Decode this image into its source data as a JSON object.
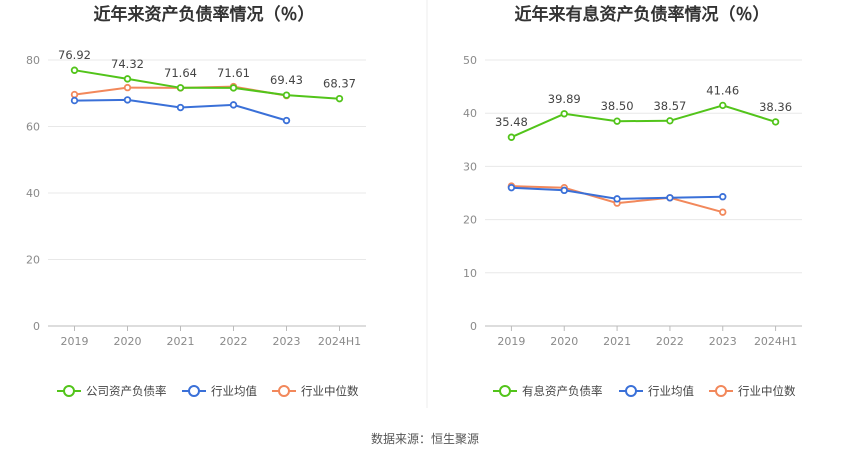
{
  "source": "数据来源：恒生聚源",
  "colors": {
    "company": "#52c41a",
    "avg": "#3a70d8",
    "median": "#f2885b",
    "grid": "#e8e8e8",
    "axis": "#bbbbbb"
  },
  "chart_data": [
    {
      "type": "line",
      "title": "近年来资产负债率情况（％）",
      "categories": [
        "2019",
        "2020",
        "2021",
        "2022",
        "2023",
        "2024H1"
      ],
      "ylim": [
        0,
        80
      ],
      "yticks": [
        0,
        20,
        40,
        60,
        80
      ],
      "grid": true,
      "legend_position": "bottom",
      "series": [
        {
          "name": "公司资产负债率",
          "values": [
            76.92,
            74.32,
            71.64,
            71.61,
            69.43,
            68.37
          ],
          "labels": [
            "76.92",
            "74.32",
            "71.64",
            "71.61",
            "69.43",
            "68.37"
          ]
        },
        {
          "name": "行业均值",
          "values": [
            67.8,
            68.0,
            65.7,
            66.5,
            61.8,
            null
          ]
        },
        {
          "name": "行业中位数",
          "values": [
            69.6,
            71.7,
            71.6,
            72.0,
            69.3,
            null
          ]
        }
      ]
    },
    {
      "type": "line",
      "title": "近年来有息资产负债率情况（％）",
      "categories": [
        "2019",
        "2020",
        "2021",
        "2022",
        "2023",
        "2024H1"
      ],
      "ylim": [
        0,
        50
      ],
      "yticks": [
        0,
        10,
        20,
        30,
        40,
        50
      ],
      "grid": true,
      "legend_position": "bottom",
      "series": [
        {
          "name": "有息资产负债率",
          "values": [
            35.48,
            39.89,
            38.5,
            38.57,
            41.46,
            38.36
          ],
          "labels": [
            "35.48",
            "39.89",
            "38.50",
            "38.57",
            "41.46",
            "38.36"
          ]
        },
        {
          "name": "行业均值",
          "values": [
            26.0,
            25.5,
            23.9,
            24.1,
            24.3,
            null
          ]
        },
        {
          "name": "行业中位数",
          "values": [
            26.3,
            26.0,
            23.1,
            24.1,
            21.4,
            null
          ]
        }
      ]
    }
  ]
}
